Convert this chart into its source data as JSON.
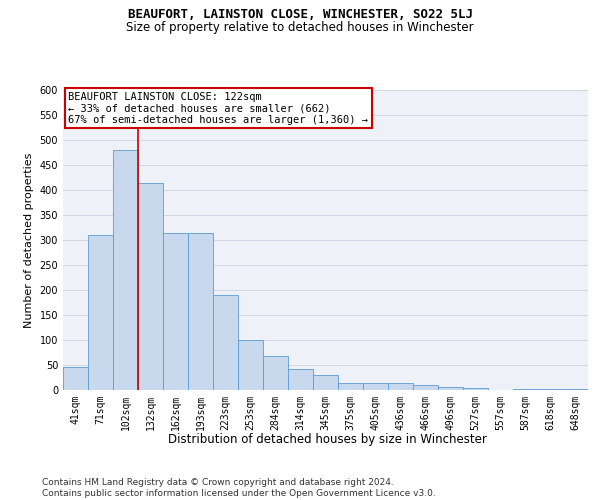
{
  "title": "BEAUFORT, LAINSTON CLOSE, WINCHESTER, SO22 5LJ",
  "subtitle": "Size of property relative to detached houses in Winchester",
  "xlabel": "Distribution of detached houses by size in Winchester",
  "ylabel": "Number of detached properties",
  "categories": [
    "41sqm",
    "71sqm",
    "102sqm",
    "132sqm",
    "162sqm",
    "193sqm",
    "223sqm",
    "253sqm",
    "284sqm",
    "314sqm",
    "345sqm",
    "375sqm",
    "405sqm",
    "436sqm",
    "466sqm",
    "496sqm",
    "527sqm",
    "557sqm",
    "587sqm",
    "618sqm",
    "648sqm"
  ],
  "values": [
    47,
    310,
    480,
    415,
    315,
    315,
    190,
    100,
    68,
    42,
    30,
    15,
    15,
    15,
    10,
    6,
    5,
    1,
    3,
    2,
    2
  ],
  "bar_color": "#c9d9ed",
  "bar_edge_color": "#5b9bd5",
  "grid_color": "#d0d8e4",
  "background_color": "#eef2f8",
  "vline_x": 2.5,
  "vline_color": "#cc0000",
  "annotation_text": "BEAUFORT LAINSTON CLOSE: 122sqm\n← 33% of detached houses are smaller (662)\n67% of semi-detached houses are larger (1,360) →",
  "annotation_box_color": "#ffffff",
  "annotation_box_edge": "#cc0000",
  "footer": "Contains HM Land Registry data © Crown copyright and database right 2024.\nContains public sector information licensed under the Open Government Licence v3.0.",
  "ylim": [
    0,
    600
  ],
  "yticks": [
    0,
    50,
    100,
    150,
    200,
    250,
    300,
    350,
    400,
    450,
    500,
    550,
    600
  ],
  "title_fontsize": 9,
  "subtitle_fontsize": 8.5,
  "xlabel_fontsize": 8.5,
  "ylabel_fontsize": 8,
  "tick_fontsize": 7,
  "annotation_fontsize": 7.5,
  "footer_fontsize": 6.5
}
